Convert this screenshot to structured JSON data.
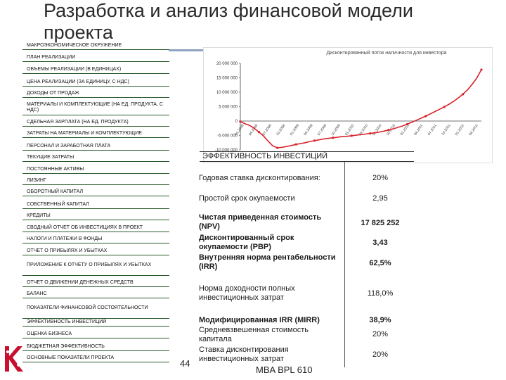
{
  "title": "Разработка и анализ финансовой модели проекта",
  "menu": [
    "МАКРОЭКОНОМИЧЕСКОЕ ОКРУЖЕНИЕ",
    "ПЛАН РЕАЛИЗАЦИИ",
    "ОБЪЕМЫ РЕАЛИЗАЦИИ (в единицах)",
    "ЦЕНА РЕАЛИЗАЦИИ (за единицу, с НДС)",
    "ДОХОДЫ ОТ ПРОДАЖ",
    "МАТЕРИАЛЫ И КОМПЛЕКТУЮЩИЕ (на ед. продукта, с НДС)",
    "СДЕЛЬНАЯ ЗАРПЛАТА (на ед. продукта)",
    "ЗАТРАТЫ НА МАТЕРИАЛЫ И КОМПЛЕКТУЮЩИЕ",
    "ПЕРСОНАЛ И ЗАРАБОТНАЯ ПЛАТА",
    "ТЕКУЩИЕ ЗАТРАТЫ",
    "ПОСТОЯННЫЕ АКТИВЫ",
    "ЛИЗИНГ",
    "ОБОРОТНЫЙ КАПИТАЛ",
    "СОБСТВЕННЫЙ КАПИТАЛ",
    "КРЕДИТЫ",
    "СВОДНЫЙ ОТЧЕТ ОБ ИНВЕСТИЦИЯХ В ПРОЕКТ",
    "НАЛОГИ И ПЛАТЕЖИ В ФОНДЫ",
    "ОТЧЕТ О ПРИБЫЛЯХ И УБЫТКАХ",
    "ПРИЛОЖЕНИЕ К ОТЧЕТУ О ПРИБЫЛЯХ И УБЫТКАХ",
    "ОТЧЕТ О ДВИЖЕНИИ ДЕНЕЖНЫХ СРЕДСТВ",
    "БАЛАНС",
    "ПОКАЗАТЕЛИ ФИНАНСОВОЙ СОСТОЯТЕЛЬНОСТИ",
    "ЭФФЕКТИВНОСТЬ ИНВЕСТИЦИЙ",
    "ОЦЕНКА БИЗНЕСА",
    "БЮДЖЕТНАЯ ЭФФЕКТИВНОСТЬ",
    "ОСНОВНЫЕ ПОКАЗАТЕЛИ ПРОЕКТА"
  ],
  "chart_data": {
    "type": "line",
    "title": "Дисконтированный поток наличности для инвестора",
    "ylim": [
      -10000000,
      20000000
    ],
    "yticks": [
      "20 000 000",
      "15 000 000",
      "10 000 000",
      "5 000 000",
      "0",
      "-5 000 000",
      "-10 000 000"
    ],
    "y": [
      -200000,
      -900000,
      -1500000,
      -2500000,
      -3800000,
      -5200000,
      -7000000,
      -8600000,
      -9300000,
      -9100000,
      -8800000,
      -8500000,
      -8100000,
      -7800000,
      -7500000,
      -7100000,
      -6800000,
      -6500000,
      -6200000,
      -6000000,
      -5800000,
      -5600000,
      -5400000,
      -5300000,
      -5100000,
      -4900000,
      -4700000,
      -4500000,
      -4300000,
      -4100000,
      -3800000,
      -3500000,
      -3100000,
      -2700000,
      -2200000,
      -1700000,
      -1100000,
      -400000,
      300000,
      1000000,
      1700000,
      2500000,
      3300000,
      4100000,
      4900000,
      5800000,
      6800000,
      8000000,
      9300000,
      10800000,
      12700000,
      14900000,
      17800000
    ],
    "series_color": "#d9232d",
    "x_tick_labels": [
      "01.2008",
      "04.2008",
      "07.2008",
      "10.2008",
      "01.2009",
      "04.2009",
      "07.2009",
      "10.2009",
      "01.2010",
      "04.2010",
      "07.2010",
      "10.2010",
      "01.2011",
      "04.2011",
      "07.2011",
      "10.2011",
      "01.2012",
      "04.2012"
    ]
  },
  "metrics": {
    "header": "ЭФФЕКТИВНОСТЬ ИНВЕСТИЦИЙ",
    "rows": [
      {
        "label": "Годовая ставка дисконтирования:",
        "value": "20%"
      },
      {
        "label": "Простой срок окупаемости",
        "value": "2,95"
      },
      {
        "label": "Чистая приведенная стоимость (NPV)",
        "value": "17 825 252"
      },
      {
        "label": "Дисконтированный срок окупаемости (PBP)",
        "value": "3,43"
      },
      {
        "label": "Внутренняя норма рентабельности (IRR)",
        "value": "62,5%"
      },
      {
        "label": "Норма доходности полных инвестиционных затрат",
        "value": "118,0%"
      },
      {
        "label": "Модифицированная IRR (MIRR)",
        "value": "38,9%"
      },
      {
        "label": "Средневзвешенная стоимость капитала",
        "value": "20%"
      },
      {
        "label": "Ставка дисконтирования инвестиционных затрат",
        "value": "20%"
      }
    ]
  },
  "page_number": "44",
  "footer": "MBA BPL 610",
  "logo_icon": "kpi-logo-icon"
}
